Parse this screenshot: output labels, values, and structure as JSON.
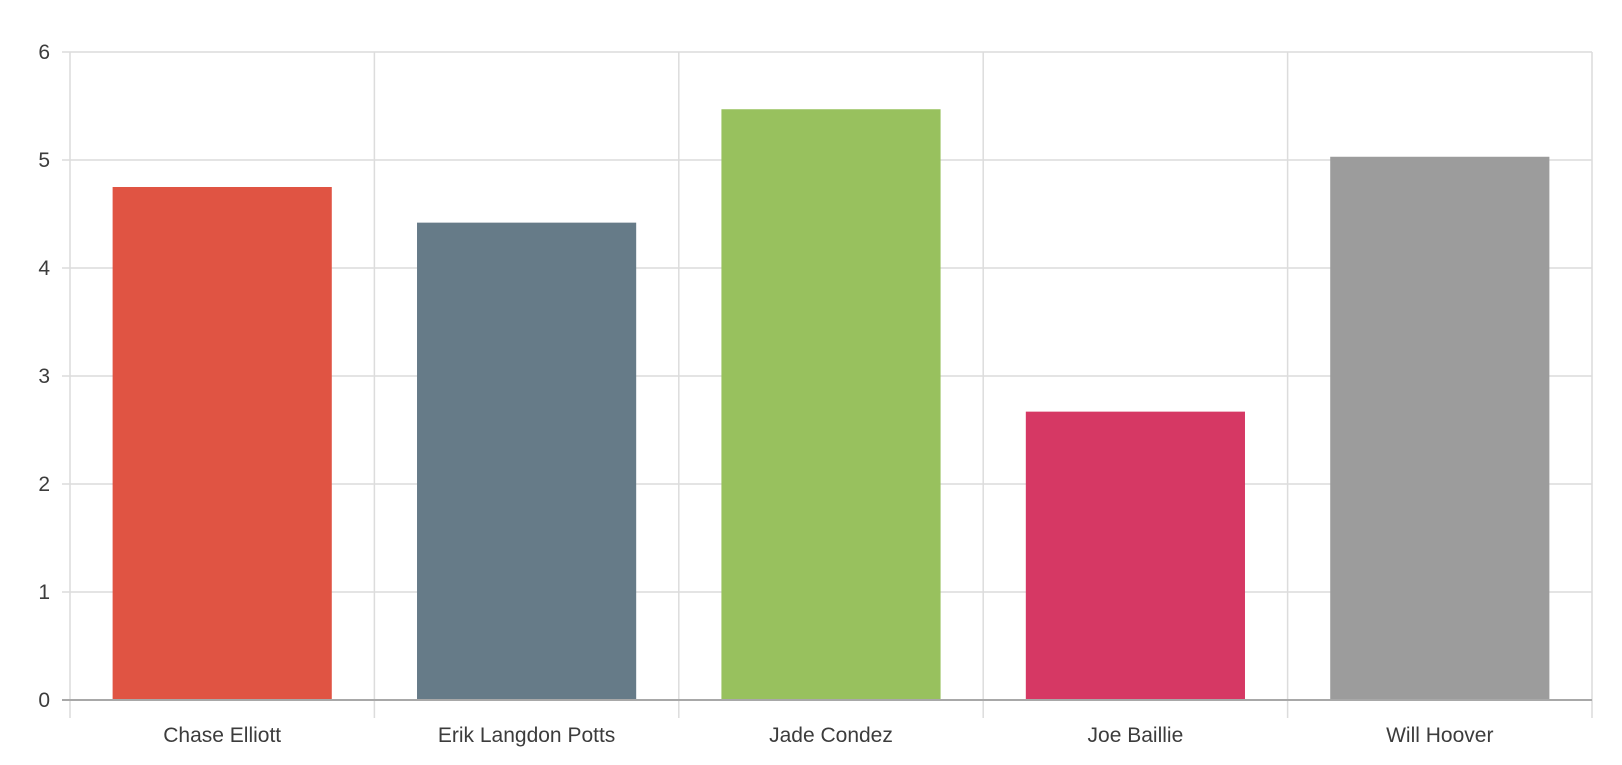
{
  "chart_data": {
    "type": "bar",
    "title": "",
    "xlabel": "",
    "ylabel": "",
    "categories": [
      "Chase Elliott",
      "Erik Langdon Potts",
      "Jade Condez",
      "Joe Baillie",
      "Will Hoover"
    ],
    "values": [
      4.75,
      4.42,
      5.47,
      2.67,
      5.03
    ],
    "colors": [
      "#e05443",
      "#667b88",
      "#98c15e",
      "#d63864",
      "#9c9c9c"
    ],
    "ylim": [
      0,
      6
    ],
    "yticks": [
      "0",
      "1",
      "2",
      "3",
      "4",
      "5",
      "6"
    ],
    "grid": true,
    "legend": "none"
  }
}
